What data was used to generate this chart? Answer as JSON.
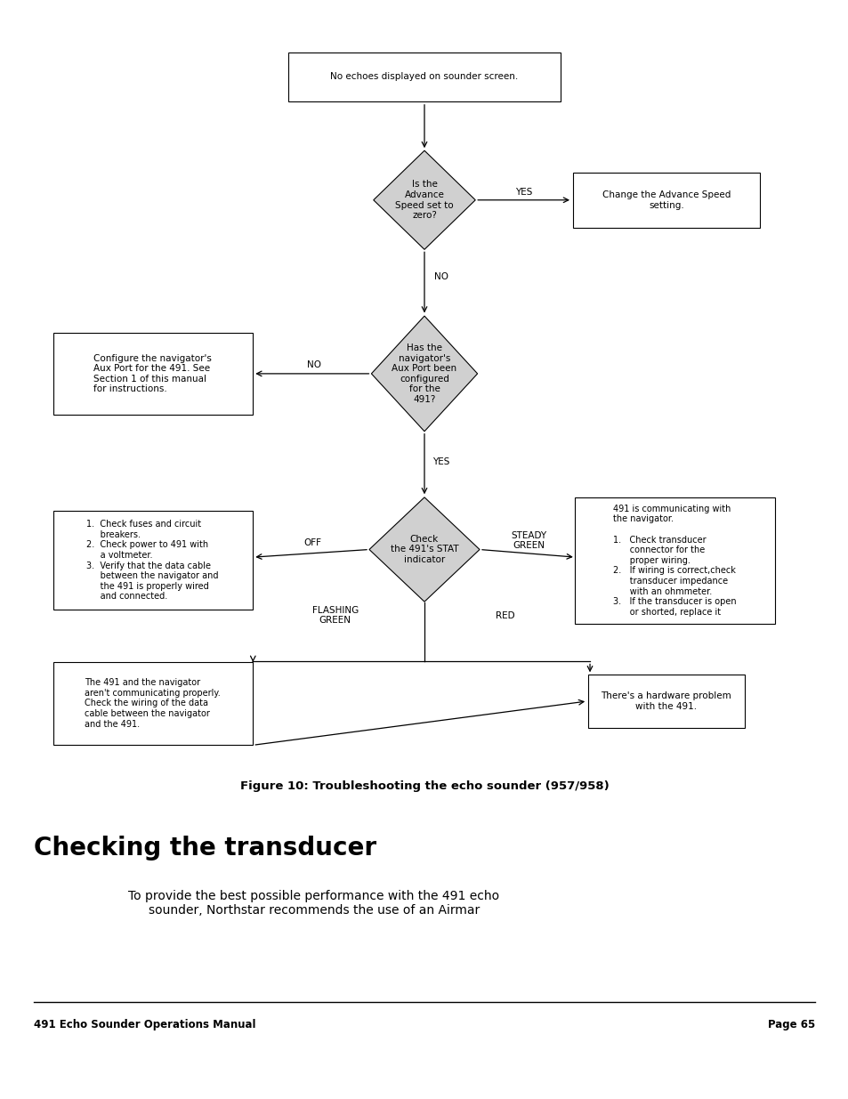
{
  "background_color": "#ffffff",
  "page_title": "Checking the transducer",
  "page_subtitle": "To provide the best possible performance with the 491 echo\nsounder, Northstar recommends the use of an Airmar",
  "figure_caption": "Figure 10: Troubleshooting the echo sounder (957/958)",
  "footer_left": "491 Echo Sounder Operations Manual",
  "footer_right": "Page 65",
  "text_color": "#000000",
  "box_edge_color": "#000000",
  "diamond_fill": "#d0d0d0",
  "rect_fill": "#ffffff"
}
